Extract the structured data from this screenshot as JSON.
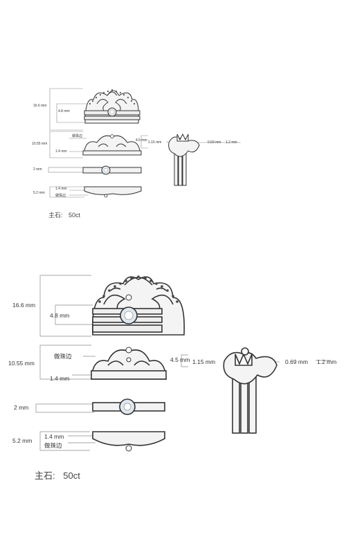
{
  "sheet_small": {
    "dims": {
      "total_height": "16.6 mm",
      "stone_height": "4.8 mm",
      "band2_height": "10.55 mm",
      "bead_edge": "做珠边",
      "band2_rail": "1.4 mm",
      "band3_width": "2 mm",
      "band4_height": "5.2 mm",
      "band4_rail": "1.4 mm",
      "band4_bead_edge": "做珠边",
      "side_height": "4.5 mm",
      "side_left": "1.15 mm",
      "side_mid": "0.69 mm",
      "side_right": "1.2 mm"
    },
    "caption_label": "主石:",
    "caption_value": "50ct"
  },
  "sheet_large": {
    "dims": {
      "total_height": "16.6 mm",
      "stone_height": "4.8 mm",
      "band2_height": "10.55 mm",
      "bead_edge": "做珠边",
      "band2_rail": "1.4 mm",
      "band3_width": "2 mm",
      "band4_height": "5.2 mm",
      "band4_rail": "1.4 mm",
      "band4_bead_edge": "做珠边",
      "side_height": "4.5 mm",
      "side_left": "1.15 mm",
      "side_mid": "0.69 mm",
      "side_right": "1.2 mm"
    },
    "caption_label": "主石:",
    "caption_value": "50ct"
  }
}
